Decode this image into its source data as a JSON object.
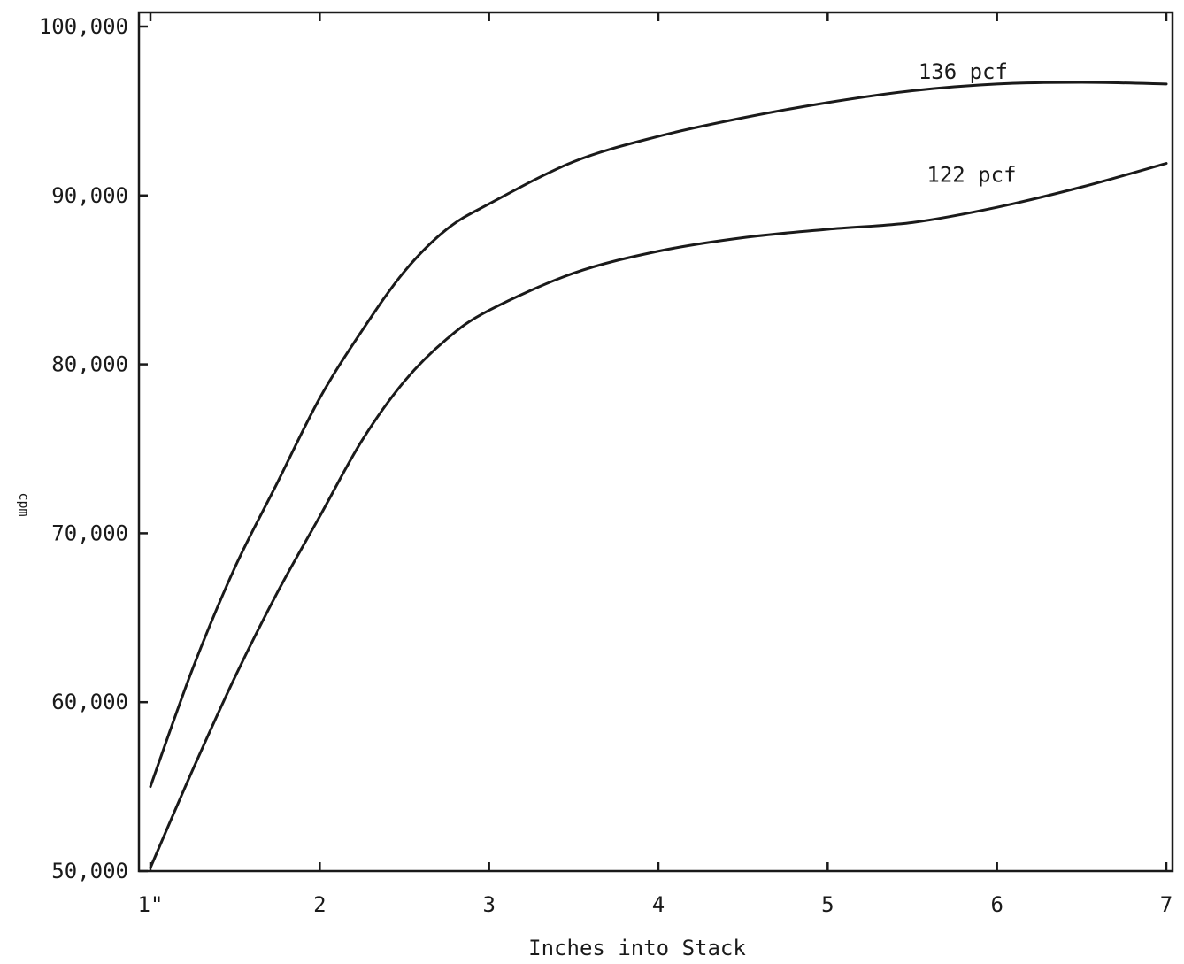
{
  "chart_data": {
    "type": "line",
    "title": "",
    "xlabel": "Inches into Stack",
    "ylabel": "cpm",
    "xlim": [
      1,
      7
    ],
    "ylim": [
      50000,
      100000
    ],
    "x_ticks": [
      1,
      2,
      3,
      4,
      5,
      6,
      7
    ],
    "x_tick_labels": [
      "1\"",
      "2",
      "3",
      "4",
      "5",
      "6",
      "7"
    ],
    "y_ticks": [
      50000,
      60000,
      70000,
      80000,
      90000,
      100000
    ],
    "y_tick_labels": [
      "50,000",
      "60,000",
      "70,000",
      "80,000",
      "90,000",
      "100,000"
    ],
    "grid": false,
    "legend": "none",
    "series": [
      {
        "name": "136 pcf",
        "label_at": [
          5.8,
          96900
        ],
        "x": [
          1,
          1.25,
          1.5,
          1.75,
          2,
          2.25,
          2.5,
          2.75,
          3,
          3.5,
          4,
          4.5,
          5,
          5.5,
          6,
          6.5,
          7
        ],
        "y": [
          55000,
          62000,
          68000,
          73000,
          78000,
          82000,
          85500,
          88000,
          89500,
          92000,
          93500,
          94600,
          95500,
          96200,
          96600,
          96700,
          96600
        ]
      },
      {
        "name": "122 pcf",
        "label_at": [
          5.85,
          90800
        ],
        "x": [
          1,
          1.25,
          1.5,
          1.75,
          2,
          2.25,
          2.5,
          2.75,
          3,
          3.5,
          4,
          4.5,
          5,
          5.5,
          6,
          6.5,
          7
        ],
        "y": [
          50200,
          56000,
          61500,
          66500,
          71000,
          75500,
          79000,
          81500,
          83200,
          85400,
          86700,
          87500,
          88000,
          88400,
          89300,
          90500,
          91900
        ]
      }
    ]
  }
}
